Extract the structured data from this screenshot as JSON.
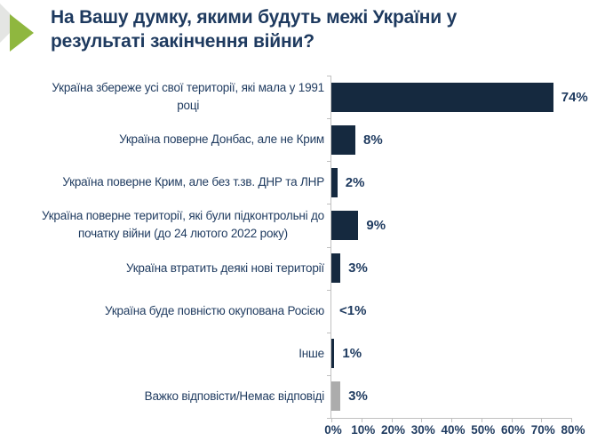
{
  "slide": {
    "title": "На Вашу думку, якими будуть межі України у\nрезультаті закінчення війни?",
    "accent_green": "#8fb73f",
    "accent_gray": "#e4e5e3"
  },
  "colors": {
    "bar_primary": "#15293f",
    "bar_muted": "#acacac",
    "text_navy": "#1e3a5f",
    "axis_gray": "#c0c0c0"
  },
  "chart_data": {
    "type": "bar",
    "orientation": "horizontal",
    "title": "На Вашу думку, якими будуть межі України у результаті закінчення війни?",
    "xlabel": "",
    "ylabel": "",
    "xlim": [
      0,
      80
    ],
    "grid": false,
    "legend": false,
    "x_tick_labels": [
      "0%",
      "10%",
      "20%",
      "30%",
      "40%",
      "50%",
      "60%",
      "70%",
      "80%"
    ],
    "items": [
      {
        "label": "Україна збереже усі свої території, які мала у 1991\nроці",
        "value": 74,
        "value_label": "74%",
        "color": "#15293f"
      },
      {
        "label": "Україна поверне Донбас, але не Крим",
        "value": 8,
        "value_label": "8%",
        "color": "#15293f"
      },
      {
        "label": "Україна поверне Крим, але без т.зв. ДНР та ЛНР",
        "value": 2,
        "value_label": "2%",
        "color": "#15293f"
      },
      {
        "label": "Україна поверне території, які були підконтрольні до\nпочатку війни (до 24 лютого 2022 року)",
        "value": 9,
        "value_label": "9%",
        "color": "#15293f"
      },
      {
        "label": "Україна втратить деякі нові території",
        "value": 3,
        "value_label": "3%",
        "color": "#15293f"
      },
      {
        "label": "Україна буде повністю окупована Росією",
        "value": 0.4,
        "value_label": "<1%",
        "color": "#15293f"
      },
      {
        "label": "Інше",
        "value": 1,
        "value_label": "1%",
        "color": "#15293f"
      },
      {
        "label": "Важко відповісти/Немає відповіді",
        "value": 3,
        "value_label": "3%",
        "color": "#acacac"
      }
    ]
  }
}
